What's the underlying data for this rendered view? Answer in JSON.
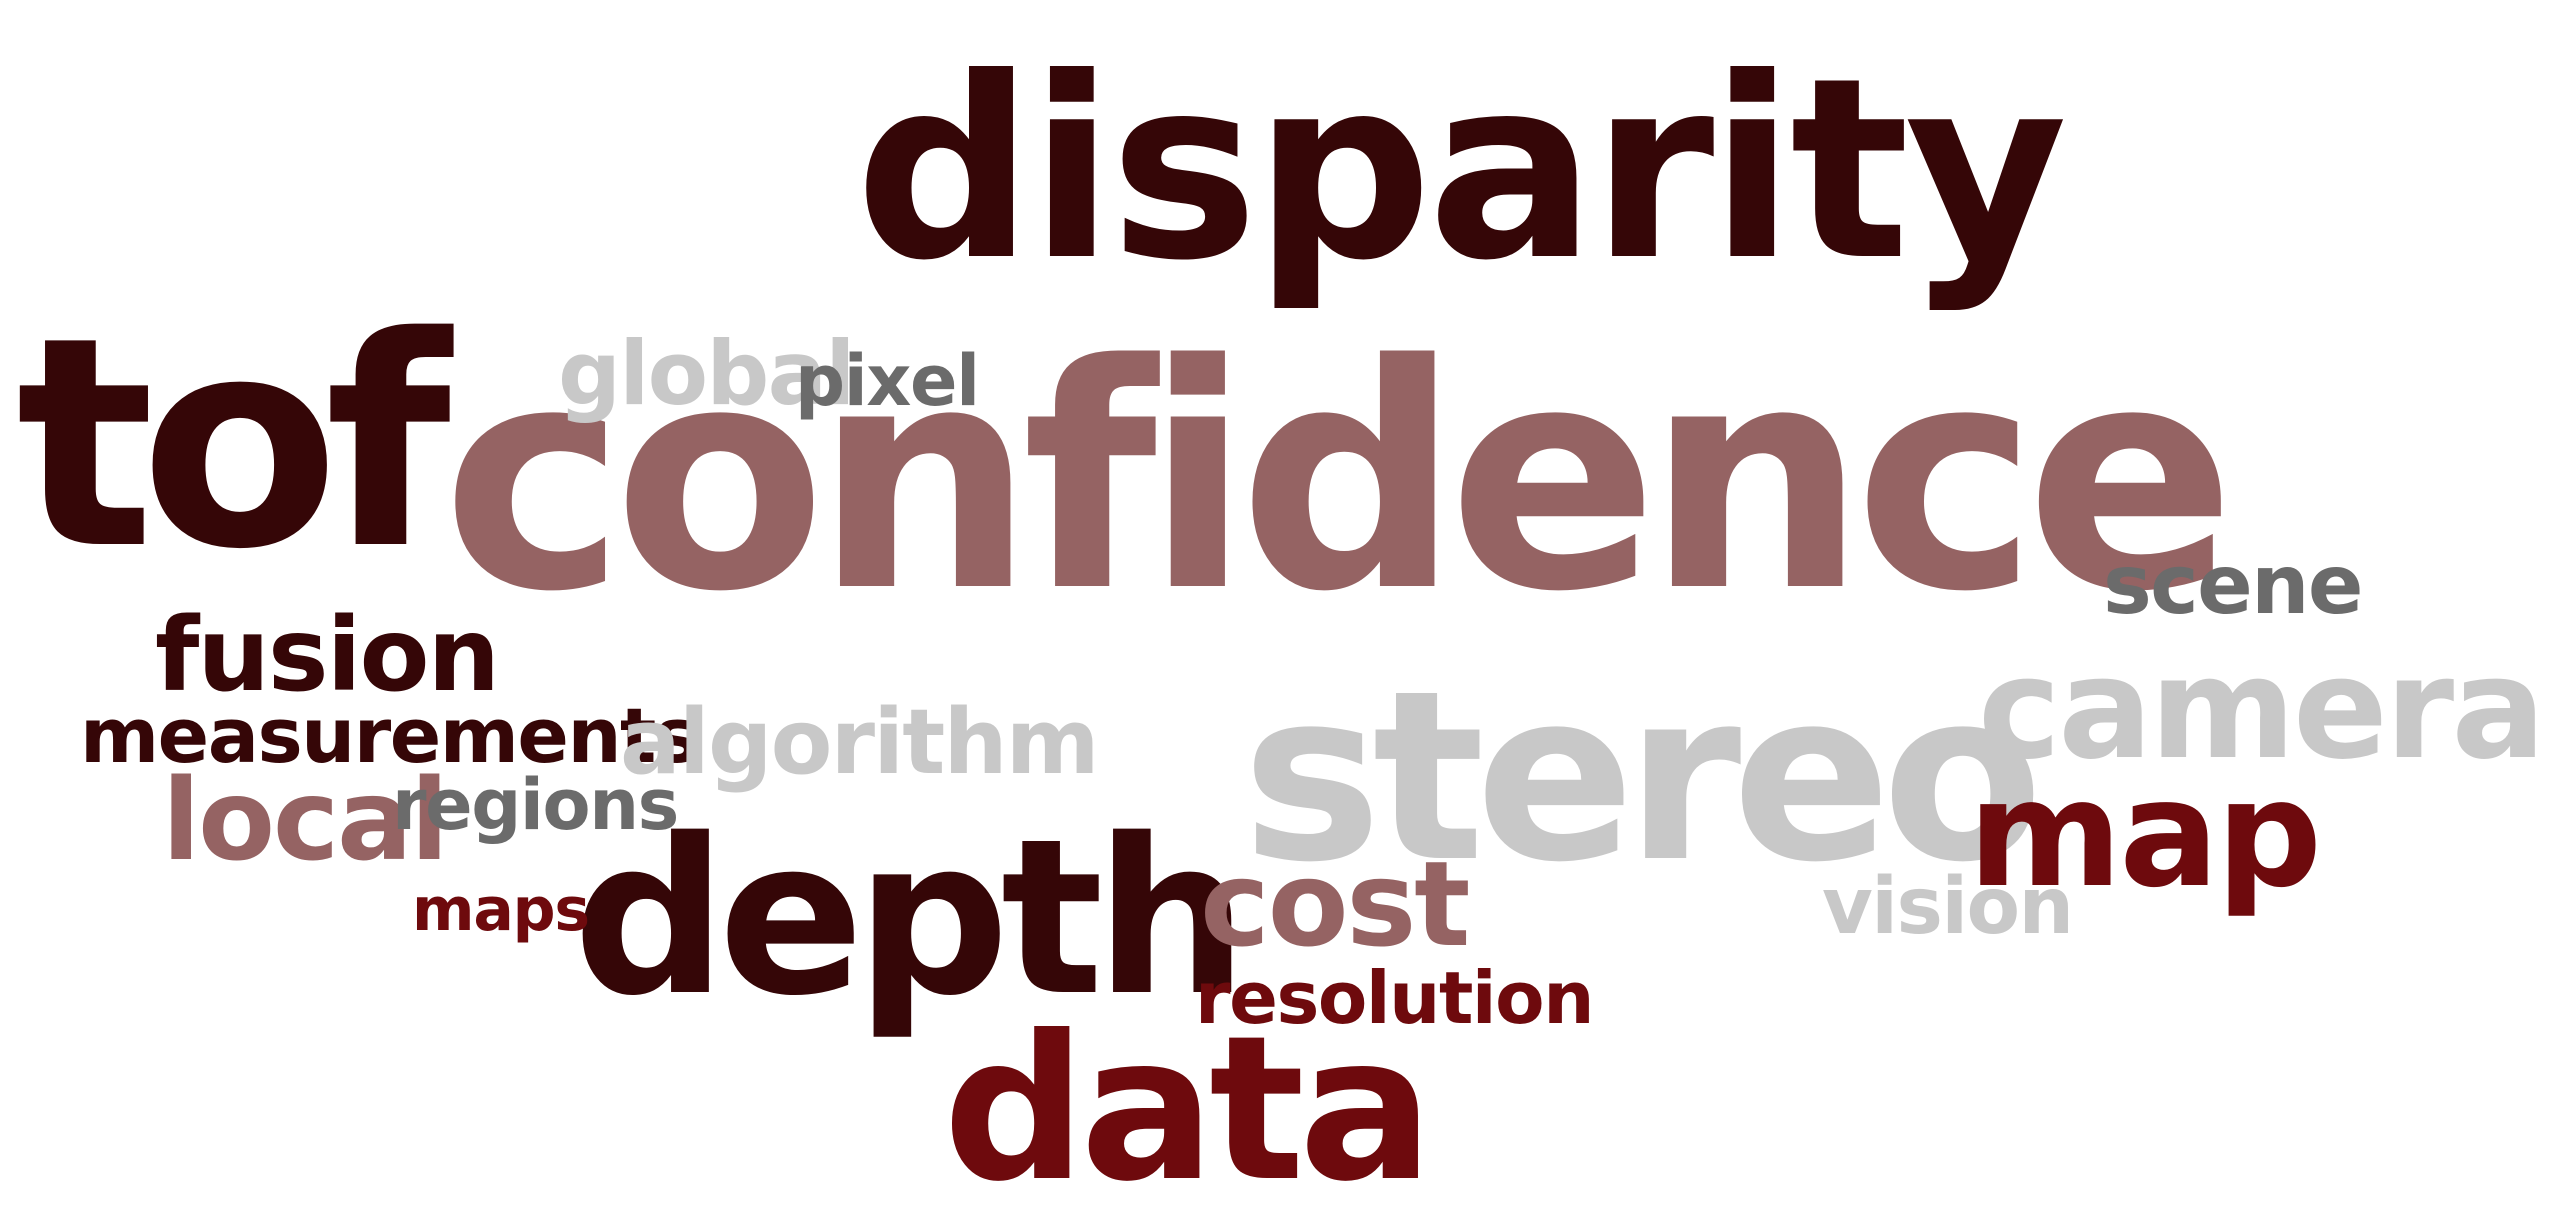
{
  "words": {
    "disparity": "disparity",
    "tof": "tof",
    "confidence": "confidence",
    "global": "global",
    "pixel": "pixel",
    "scene": "scene",
    "camera": "camera",
    "fusion": "fusion",
    "measurements": "measurements",
    "algorithm": "algorithm",
    "stereo": "stereo",
    "local": "local",
    "regions": "regions",
    "map": "map",
    "depth": "depth",
    "cost": "cost",
    "vision": "vision",
    "maps": "maps",
    "resolution": "resolution",
    "data": "data"
  },
  "colors": {
    "dark": "#350607",
    "red": "#6e0a0d",
    "rose": "#956363",
    "grey": "#6b6b6b",
    "light": "#c8c8c8",
    "background": "#ffffff"
  }
}
